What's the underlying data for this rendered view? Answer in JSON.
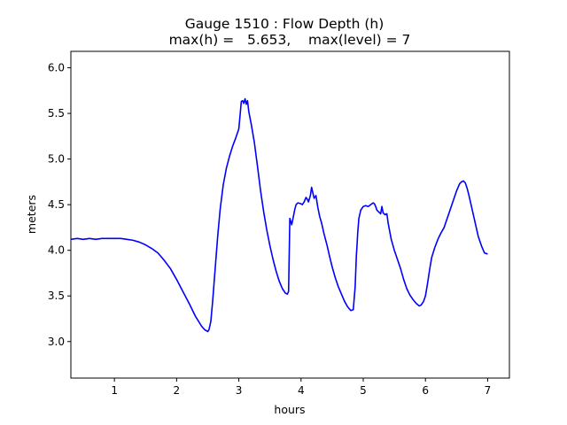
{
  "chart_data": {
    "type": "line",
    "title_line1": "Gauge 1510 : Flow Depth (h)",
    "title_line2": "max(h) =   5.653,    max(level) = 7",
    "xlabel": "hours",
    "ylabel": "meters",
    "xlim": [
      0.3,
      7.35
    ],
    "ylim": [
      2.6,
      6.18
    ],
    "xticks": [
      1,
      2,
      3,
      4,
      5,
      6,
      7
    ],
    "yticks": [
      3.0,
      3.5,
      4.0,
      4.5,
      5.0,
      5.5,
      6.0
    ],
    "xtick_labels": [
      "1",
      "2",
      "3",
      "4",
      "5",
      "6",
      "7"
    ],
    "ytick_labels": [
      "3.0",
      "3.5",
      "4.0",
      "4.5",
      "5.0",
      "5.5",
      "6.0"
    ],
    "grid": false,
    "series": [
      {
        "color": "#0000ff",
        "x": [
          0.3,
          0.4,
          0.5,
          0.6,
          0.7,
          0.8,
          0.9,
          1.0,
          1.1,
          1.2,
          1.3,
          1.4,
          1.5,
          1.6,
          1.7,
          1.8,
          1.9,
          2.0,
          2.1,
          2.2,
          2.3,
          2.4,
          2.45,
          2.5,
          2.52,
          2.55,
          2.58,
          2.62,
          2.66,
          2.7,
          2.75,
          2.8,
          2.85,
          2.9,
          2.95,
          3.0,
          3.02,
          3.04,
          3.06,
          3.08,
          3.1,
          3.12,
          3.14,
          3.16,
          3.2,
          3.25,
          3.3,
          3.35,
          3.4,
          3.45,
          3.5,
          3.55,
          3.6,
          3.65,
          3.7,
          3.75,
          3.78,
          3.8,
          3.82,
          3.85,
          3.88,
          3.9,
          3.92,
          3.95,
          4.0,
          4.02,
          4.05,
          4.08,
          4.1,
          4.12,
          4.15,
          4.17,
          4.19,
          4.21,
          4.24,
          4.27,
          4.3,
          4.33,
          4.37,
          4.42,
          4.46,
          4.5,
          4.55,
          4.6,
          4.65,
          4.7,
          4.75,
          4.8,
          4.84,
          4.87,
          4.89,
          4.9,
          4.91,
          4.93,
          4.96,
          5.0,
          5.04,
          5.08,
          5.12,
          5.16,
          5.18,
          5.2,
          5.22,
          5.25,
          5.28,
          5.3,
          5.32,
          5.35,
          5.38,
          5.4,
          5.45,
          5.5,
          5.55,
          5.6,
          5.65,
          5.7,
          5.75,
          5.8,
          5.85,
          5.9,
          5.93,
          5.97,
          6.0,
          6.03,
          6.07,
          6.1,
          6.15,
          6.2,
          6.25,
          6.3,
          6.35,
          6.4,
          6.45,
          6.5,
          6.55,
          6.58,
          6.61,
          6.64,
          6.67,
          6.7,
          6.75,
          6.8,
          6.85,
          6.9,
          6.95,
          7.0
        ],
        "y": [
          4.12,
          4.13,
          4.12,
          4.13,
          4.12,
          4.13,
          4.13,
          4.13,
          4.13,
          4.12,
          4.11,
          4.09,
          4.06,
          4.02,
          3.97,
          3.89,
          3.8,
          3.68,
          3.55,
          3.42,
          3.28,
          3.17,
          3.13,
          3.11,
          3.13,
          3.22,
          3.45,
          3.8,
          4.15,
          4.45,
          4.72,
          4.9,
          5.03,
          5.14,
          5.23,
          5.33,
          5.48,
          5.63,
          5.64,
          5.61,
          5.66,
          5.6,
          5.64,
          5.52,
          5.38,
          5.18,
          4.92,
          4.65,
          4.42,
          4.22,
          4.05,
          3.9,
          3.77,
          3.66,
          3.58,
          3.53,
          3.52,
          3.55,
          4.35,
          4.28,
          4.38,
          4.45,
          4.5,
          4.52,
          4.51,
          4.5,
          4.53,
          4.58,
          4.56,
          4.53,
          4.6,
          4.69,
          4.63,
          4.57,
          4.6,
          4.47,
          4.37,
          4.3,
          4.18,
          4.05,
          3.93,
          3.82,
          3.7,
          3.6,
          3.52,
          3.44,
          3.38,
          3.34,
          3.35,
          3.6,
          3.95,
          4.05,
          4.18,
          4.35,
          4.44,
          4.48,
          4.49,
          4.48,
          4.5,
          4.52,
          4.51,
          4.48,
          4.44,
          4.42,
          4.4,
          4.48,
          4.41,
          4.39,
          4.4,
          4.3,
          4.12,
          4.0,
          3.9,
          3.8,
          3.68,
          3.58,
          3.51,
          3.46,
          3.42,
          3.39,
          3.4,
          3.44,
          3.5,
          3.62,
          3.8,
          3.92,
          4.03,
          4.12,
          4.19,
          4.25,
          4.35,
          4.45,
          4.55,
          4.65,
          4.73,
          4.75,
          4.76,
          4.74,
          4.68,
          4.6,
          4.45,
          4.3,
          4.15,
          4.05,
          3.97,
          3.96
        ]
      }
    ]
  }
}
